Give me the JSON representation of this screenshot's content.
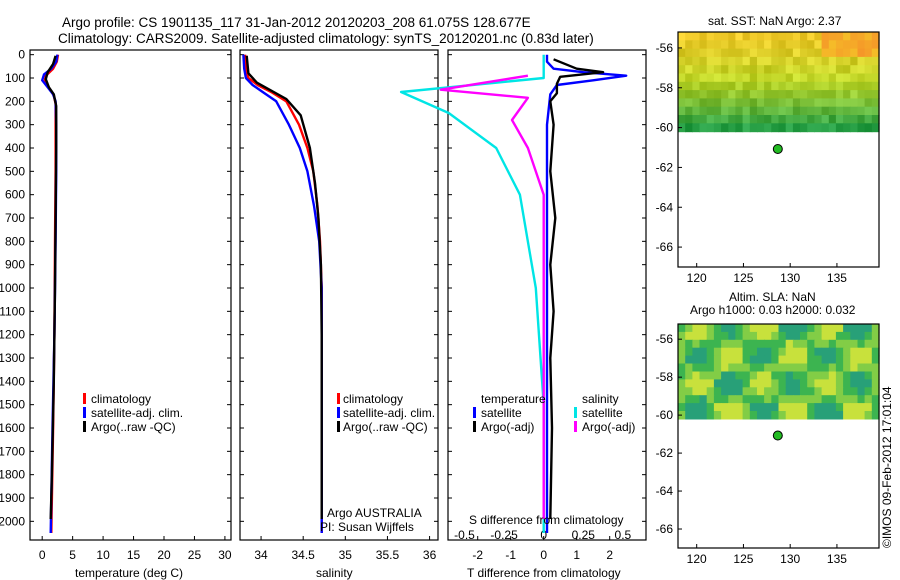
{
  "header": {
    "line1": "Argo profile: CS 1901135_117 31-Jan-2012 20120203_208 61.075S 128.677E",
    "line2": "Climatology: CARS2009. Satellite-adjusted climatology: synTS_20120201.nc (0.83d later)"
  },
  "footer_stamp": "©IMOS 09-Feb-2012 17:01:04",
  "chart_data": [
    {
      "type": "line",
      "name": "temperature-profile",
      "xlabel": "temperature (deg C)",
      "ylabel": "",
      "xlim": [
        -2,
        31
      ],
      "ylim": [
        2080,
        -20
      ],
      "xticks": [
        "0",
        "5",
        "10",
        "15",
        "20",
        "25",
        "30"
      ],
      "yticks": [
        "0",
        "100",
        "200",
        "300",
        "400",
        "500",
        "600",
        "700",
        "800",
        "900",
        "1000",
        "1100",
        "1200",
        "1300",
        "1400",
        "1500",
        "1600",
        "1700",
        "1800",
        "1900",
        "2000"
      ],
      "legend": [
        "climatology",
        "satellite-adj. clim.",
        "Argo(..raw -QC)"
      ],
      "legend_colors": [
        "#ff0000",
        "#0000ff",
        "#000000"
      ],
      "series": [
        {
          "name": "climatology",
          "color": "#ff0000",
          "points": [
            [
              2.6,
              0
            ],
            [
              2.4,
              30
            ],
            [
              1.8,
              60
            ],
            [
              0.6,
              90
            ],
            [
              0.4,
              115
            ],
            [
              1.2,
              145
            ],
            [
              1.9,
              175
            ],
            [
              2.2,
              210
            ],
            [
              2.2,
              300
            ],
            [
              2.2,
              500
            ],
            [
              2.1,
              800
            ],
            [
              2.0,
              1200
            ],
            [
              1.8,
              1600
            ],
            [
              1.5,
              2050
            ]
          ]
        },
        {
          "name": "satellite-adj. clim.",
          "color": "#0000ff",
          "points": [
            [
              2.5,
              0
            ],
            [
              2.3,
              30
            ],
            [
              1.5,
              60
            ],
            [
              0.3,
              85
            ],
            [
              0.0,
              110
            ],
            [
              0.9,
              140
            ],
            [
              1.8,
              170
            ],
            [
              2.2,
              200
            ],
            [
              2.3,
              300
            ],
            [
              2.3,
              500
            ],
            [
              2.2,
              800
            ],
            [
              2.0,
              1200
            ],
            [
              1.7,
              1600
            ],
            [
              1.4,
              2050
            ]
          ]
        },
        {
          "name": "Argo(..raw -QC)",
          "color": "#000000",
          "points": [
            [
              2.2,
              5
            ],
            [
              1.8,
              40
            ],
            [
              0.9,
              75
            ],
            [
              0.6,
              105
            ],
            [
              1.1,
              140
            ],
            [
              1.9,
              170
            ],
            [
              2.3,
              220
            ],
            [
              2.3,
              400
            ],
            [
              2.2,
              700
            ],
            [
              2.1,
              1000
            ],
            [
              1.9,
              1400
            ],
            [
              1.6,
              1800
            ],
            [
              1.4,
              1990
            ]
          ]
        }
      ]
    },
    {
      "type": "line",
      "name": "salinity-profile",
      "xlabel": "salinity",
      "ylabel": "",
      "xlim": [
        33.75,
        36.1
      ],
      "ylim": [
        2080,
        -20
      ],
      "xticks": [
        "34",
        "34.5",
        "35",
        "35.5",
        "36"
      ],
      "legend": [
        "climatology",
        "satellite-adj. clim.",
        "Argo(..raw -QC)"
      ],
      "legend_colors": [
        "#ff0000",
        "#0000ff",
        "#000000"
      ],
      "annotation": [
        "Argo AUSTRALIA",
        "PI: Susan Wijffels"
      ],
      "series": [
        {
          "name": "climatology",
          "color": "#ff0000",
          "points": [
            [
              33.81,
              0
            ],
            [
              33.82,
              60
            ],
            [
              33.85,
              100
            ],
            [
              33.96,
              130
            ],
            [
              34.12,
              160
            ],
            [
              34.3,
              200
            ],
            [
              34.45,
              300
            ],
            [
              34.55,
              400
            ],
            [
              34.62,
              500
            ],
            [
              34.67,
              650
            ],
            [
              34.7,
              800
            ],
            [
              34.72,
              1000
            ],
            [
              34.72,
              1500
            ],
            [
              34.72,
              2050
            ]
          ]
        },
        {
          "name": "satellite-adj. clim.",
          "color": "#0000ff",
          "points": [
            [
              33.79,
              0
            ],
            [
              33.8,
              60
            ],
            [
              33.82,
              100
            ],
            [
              33.9,
              130
            ],
            [
              34.02,
              160
            ],
            [
              34.18,
              200
            ],
            [
              34.33,
              300
            ],
            [
              34.46,
              400
            ],
            [
              34.55,
              500
            ],
            [
              34.63,
              650
            ],
            [
              34.69,
              800
            ],
            [
              34.72,
              1000
            ],
            [
              34.72,
              1500
            ],
            [
              34.72,
              2050
            ]
          ]
        },
        {
          "name": "Argo(..raw -QC)",
          "color": "#000000",
          "points": [
            [
              33.83,
              5
            ],
            [
              33.85,
              80
            ],
            [
              33.95,
              120
            ],
            [
              34.1,
              150
            ],
            [
              34.3,
              190
            ],
            [
              34.47,
              260
            ],
            [
              34.58,
              400
            ],
            [
              34.64,
              550
            ],
            [
              34.68,
              700
            ],
            [
              34.71,
              900
            ],
            [
              34.72,
              1200
            ],
            [
              34.72,
              1600
            ],
            [
              34.72,
              1990
            ]
          ]
        }
      ]
    },
    {
      "type": "line",
      "name": "difference-profile",
      "xlabel": "T difference from climatology",
      "xlabel_top": "S difference from climatology",
      "xlim": [
        -2.9,
        3.1
      ],
      "ylim": [
        2080,
        -20
      ],
      "xticks": [
        "-2",
        "-1",
        "0",
        "1",
        "2"
      ],
      "xticks_top": [
        "-0.5",
        "-0.25",
        "0",
        "0.25",
        "0.5"
      ],
      "legend_titles": [
        "temperature",
        "salinity"
      ],
      "legend": [
        "satellite",
        "Argo(-adj)",
        "satellite",
        "Argo(-adj)"
      ],
      "legend_colors": [
        "#0000ff",
        "#000000",
        "#00e5e5",
        "#ff00ff"
      ],
      "series": [
        {
          "name": "temperature satellite",
          "color": "#0000ff",
          "points": [
            [
              0.1,
              0
            ],
            [
              0.1,
              30
            ],
            [
              0.3,
              60
            ],
            [
              1.2,
              75
            ],
            [
              2.5,
              90
            ],
            [
              1.5,
              110
            ],
            [
              0.4,
              130
            ],
            [
              0.2,
              170
            ],
            [
              0.1,
              300
            ],
            [
              0.1,
              600
            ],
            [
              0.1,
              1000
            ],
            [
              0.1,
              1400
            ],
            [
              0.1,
              1800
            ],
            [
              0.1,
              2050
            ]
          ]
        },
        {
          "name": "temperature Argo(-adj)",
          "color": "#000000",
          "points": [
            [
              0.3,
              20
            ],
            [
              1.0,
              60
            ],
            [
              1.8,
              75
            ],
            [
              0.5,
              95
            ],
            [
              0.4,
              125
            ],
            [
              0.4,
              165
            ],
            [
              0.2,
              200
            ],
            [
              0.3,
              300
            ],
            [
              0.2,
              500
            ],
            [
              0.35,
              700
            ],
            [
              0.2,
              900
            ],
            [
              0.3,
              1100
            ],
            [
              0.2,
              1300
            ],
            [
              0.25,
              1600
            ],
            [
              0.2,
              1990
            ]
          ]
        },
        {
          "name": "salinity satellite",
          "color": "#00e5e5",
          "points": [
            [
              0.0,
              0
            ],
            [
              0.0,
              100
            ],
            [
              -0.9,
              160
            ],
            [
              -0.6,
              250
            ],
            [
              -0.3,
              400
            ],
            [
              -0.15,
              600
            ],
            [
              -0.05,
              1000
            ],
            [
              0.0,
              1500
            ],
            [
              0.0,
              2050
            ]
          ]
        },
        {
          "name": "salinity Argo(-adj)",
          "color": "#ff00ff",
          "points": [
            [
              -0.1,
              90
            ],
            [
              -0.65,
              150
            ],
            [
              -0.1,
              185
            ],
            [
              -0.2,
              280
            ],
            [
              -0.1,
              400
            ],
            [
              0.0,
              600
            ],
            [
              0.0,
              1000
            ],
            [
              0.0,
              1500
            ],
            [
              0.0,
              1990
            ]
          ]
        }
      ]
    },
    {
      "type": "heatmap",
      "name": "sst-map",
      "title": "sat. SST: NaN Argo: 2.37",
      "xlim": [
        118,
        139.5
      ],
      "ylim": [
        -67,
        -55.2
      ],
      "xticks": [
        "120",
        "125",
        "130",
        "135"
      ],
      "yticks": [
        "-56",
        "-58",
        "-60",
        "-62",
        "-64",
        "-66"
      ],
      "data_extent_lat": [
        -55.2,
        -60.2
      ],
      "argo_position": [
        128.677,
        -61.075
      ]
    },
    {
      "type": "heatmap",
      "name": "sla-map",
      "title": "Altim. SLA: NaN",
      "subtitle": "Argo h1000: 0.03 h2000: 0.032",
      "xlim": [
        118,
        139.5
      ],
      "ylim": [
        -67,
        -55.2
      ],
      "xticks": [
        "120",
        "125",
        "130",
        "135"
      ],
      "yticks": [
        "-56",
        "-58",
        "-60",
        "-62",
        "-64",
        "-66"
      ],
      "data_extent_lat": [
        -55.2,
        -60.2
      ],
      "argo_position": [
        128.677,
        -61.075
      ]
    }
  ]
}
